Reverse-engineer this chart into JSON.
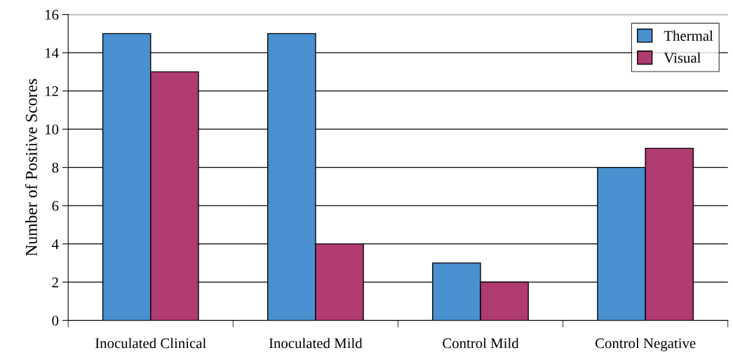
{
  "chart_data": {
    "type": "bar",
    "ylabel": "Number of Positive Scores",
    "categories": [
      "Inoculated Clinical",
      "Inoculated Mild",
      "Control Mild",
      "Control Negative"
    ],
    "series": [
      {
        "name": "Thermal",
        "color": "#4a90d0",
        "values": [
          15,
          15,
          3,
          8
        ]
      },
      {
        "name": "Visual",
        "color": "#b03a72",
        "values": [
          13,
          4,
          2,
          9
        ]
      }
    ],
    "ylim": [
      0,
      16
    ],
    "yticks": [
      0,
      2,
      4,
      6,
      8,
      10,
      12,
      14,
      16
    ],
    "grid": "y",
    "legend": "top right"
  }
}
